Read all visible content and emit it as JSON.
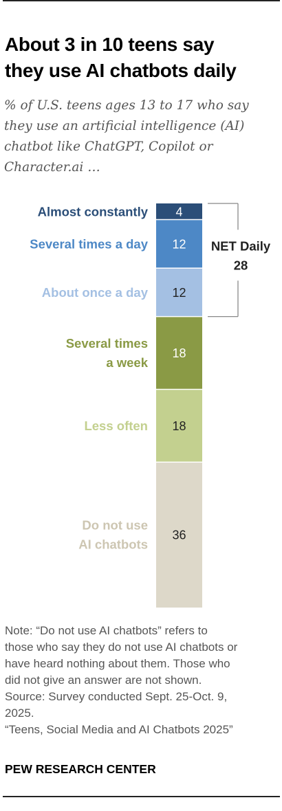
{
  "title_lines": [
    "About 3 in 10 teens say",
    "they use AI chatbots daily"
  ],
  "subtitle_lines": [
    "% of U.S. teens ages 13 to 17 who say",
    "they use an artificial intelligence (AI)",
    "chatbot like ChatGPT, Copilot or",
    "Character.ai …"
  ],
  "chart_data": {
    "type": "bar",
    "stacked": true,
    "orientation": "vertical",
    "categories": [
      "Almost constantly",
      "Several times a day",
      "About once a day",
      "Several times a week",
      "Less often",
      "Do not use AI chatbots"
    ],
    "category_label_lines": [
      [
        "Almost constantly"
      ],
      [
        "Several times a day"
      ],
      [
        "About once a day"
      ],
      [
        "Several times",
        "a week"
      ],
      [
        "Less often"
      ],
      [
        "Do not use",
        "AI chatbots"
      ]
    ],
    "values": [
      4,
      12,
      12,
      18,
      18,
      36
    ],
    "colors": [
      "#2b4e78",
      "#4d88c6",
      "#a4c0e3",
      "#8a9a45",
      "#c3d08f",
      "#ddd8c9"
    ],
    "label_colors": [
      "#2b4e78",
      "#4d88c6",
      "#a4c0e3",
      "#8a9a45",
      "#c3d08f",
      "#cdc6b2"
    ],
    "value_text_colors": [
      "#ffffff",
      "#ffffff",
      "#222222",
      "#ffffff",
      "#222222",
      "#222222"
    ],
    "annotation": {
      "label_lines": [
        "NET Daily",
        "28"
      ],
      "value": 28,
      "spans": [
        "Almost constantly",
        "Several times a day",
        "About once a day"
      ]
    }
  },
  "note_lines": [
    "Note: “Do not use AI chatbots” refers to",
    "those who say they do not use AI chatbots or",
    "have heard nothing about them. Those who",
    "did not give an answer are not shown.",
    "Source: Survey conducted Sept. 25-Oct. 9,",
    "2025.",
    "“Teens, Social Media and AI Chatbots 2025”"
  ],
  "brand": "PEW RESEARCH CENTER"
}
